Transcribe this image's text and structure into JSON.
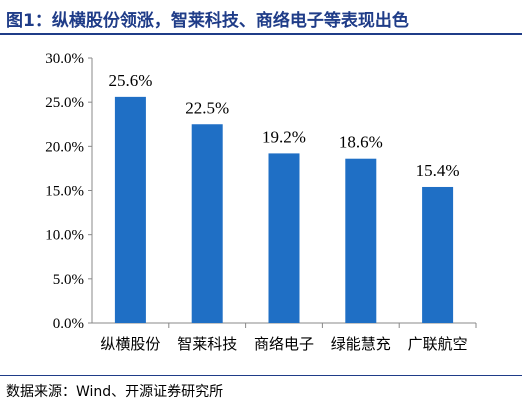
{
  "title": "图1：纵横股份领涨，智莱科技、商络电子等表现出色",
  "source": "数据来源：Wind、开源证券研究所",
  "colors": {
    "bar": "#1f6fc5",
    "title": "#1f3c88",
    "axis": "#888888"
  },
  "chart_data": {
    "type": "bar",
    "categories": [
      "纵横股份",
      "智莱科技",
      "商络电子",
      "绿能慧充",
      "广联航空"
    ],
    "values": [
      25.6,
      22.5,
      19.2,
      18.6,
      15.4
    ],
    "data_labels": [
      "25.6%",
      "22.5%",
      "19.2%",
      "18.6%",
      "15.4%"
    ],
    "title": "",
    "xlabel": "",
    "ylabel": "",
    "ylim": [
      0,
      30
    ],
    "yticks": [
      0,
      5,
      10,
      15,
      20,
      25,
      30
    ],
    "ytick_labels": [
      "0.0%",
      "5.0%",
      "10.0%",
      "15.0%",
      "20.0%",
      "25.0%",
      "30.0%"
    ],
    "grid": false,
    "legend": "none"
  }
}
